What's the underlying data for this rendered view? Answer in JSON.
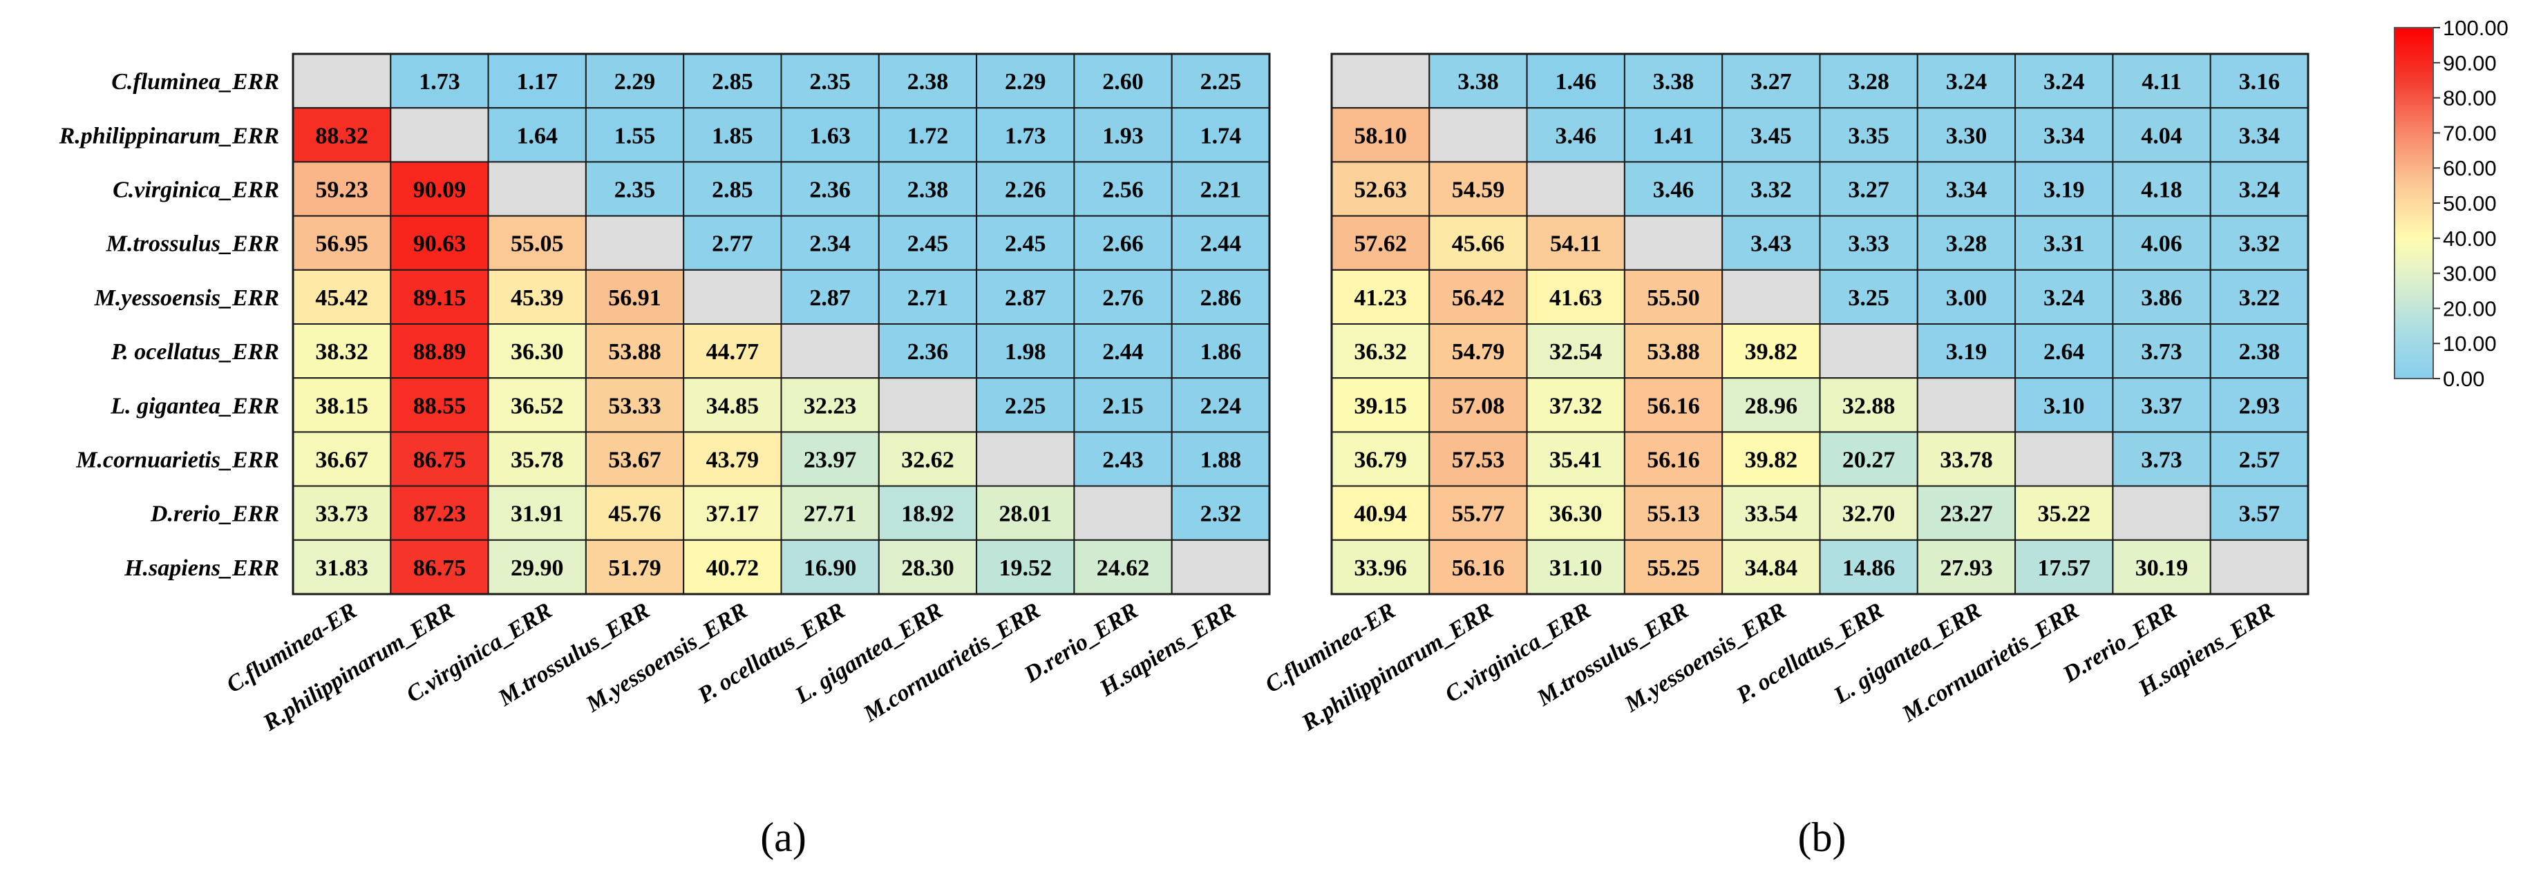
{
  "chart_data": {
    "type": "heatmap",
    "row_labels": [
      "C.fluminea_ERR",
      "R.philippinarum_ERR",
      "C.virginica_ERR",
      "M.trossulus_ERR",
      "M.yessoensis_ERR",
      "P. ocellatus_ERR",
      "L. gigantea_ERR",
      "M.cornuarietis_ERR",
      "D.rerio_ERR",
      "H.sapiens_ERR"
    ],
    "col_labels": [
      "C.fluminea-ER",
      "R.philippinarum_ERR",
      "C.virginica_ERR",
      "M.trossulus_ERR",
      "M.yessoensis_ERR",
      "P. ocellatus_ERR",
      "L. gigantea_ERR",
      "M.cornuarietis_ERR",
      "D.rerio_ERR",
      "H.sapiens_ERR"
    ],
    "colorbar": {
      "range": [
        0,
        100
      ],
      "ticks": [
        "100.00",
        "90.00",
        "80.00",
        "70.00",
        "60.00",
        "50.00",
        "40.00",
        "30.00",
        "20.00",
        "10.00",
        "0.00"
      ],
      "colors": [
        "#87ceeb",
        "#fffbb0",
        "#ff0000"
      ]
    },
    "panels": [
      {
        "label": "(a)",
        "matrix": [
          [
            null,
            "1.73",
            "1.17",
            "2.29",
            "2.85",
            "2.35",
            "2.38",
            "2.29",
            "2.60",
            "2.25"
          ],
          [
            "88.32",
            null,
            "1.64",
            "1.55",
            "1.85",
            "1.63",
            "1.72",
            "1.73",
            "1.93",
            "1.74"
          ],
          [
            "59.23",
            "90.09",
            null,
            "2.35",
            "2.85",
            "2.36",
            "2.38",
            "2.26",
            "2.56",
            "2.21"
          ],
          [
            "56.95",
            "90.63",
            "55.05",
            null,
            "2.77",
            "2.34",
            "2.45",
            "2.45",
            "2.66",
            "2.44"
          ],
          [
            "45.42",
            "89.15",
            "45.39",
            "56.91",
            null,
            "2.87",
            "2.71",
            "2.87",
            "2.76",
            "2.86"
          ],
          [
            "38.32",
            "88.89",
            "36.30",
            "53.88",
            "44.77",
            null,
            "2.36",
            "1.98",
            "2.44",
            "1.86"
          ],
          [
            "38.15",
            "88.55",
            "36.52",
            "53.33",
            "34.85",
            "32.23",
            null,
            "2.25",
            "2.15",
            "2.24"
          ],
          [
            "36.67",
            "86.75",
            "35.78",
            "53.67",
            "43.79",
            "23.97",
            "32.62",
            null,
            "2.43",
            "1.88"
          ],
          [
            "33.73",
            "87.23",
            "31.91",
            "45.76",
            "37.17",
            "27.71",
            "18.92",
            "28.01",
            null,
            "2.32"
          ],
          [
            "31.83",
            "86.75",
            "29.90",
            "51.79",
            "40.72",
            "16.90",
            "28.30",
            "19.52",
            "24.62",
            null
          ]
        ]
      },
      {
        "label": "(b)",
        "matrix": [
          [
            null,
            "3.38",
            "1.46",
            "3.38",
            "3.27",
            "3.28",
            "3.24",
            "3.24",
            "4.11",
            "3.16"
          ],
          [
            "58.10",
            null,
            "3.46",
            "1.41",
            "3.45",
            "3.35",
            "3.30",
            "3.34",
            "4.04",
            "3.34"
          ],
          [
            "52.63",
            "54.59",
            null,
            "3.46",
            "3.32",
            "3.27",
            "3.34",
            "3.19",
            "4.18",
            "3.24"
          ],
          [
            "57.62",
            "45.66",
            "54.11",
            null,
            "3.43",
            "3.33",
            "3.28",
            "3.31",
            "4.06",
            "3.32"
          ],
          [
            "41.23",
            "56.42",
            "41.63",
            "55.50",
            null,
            "3.25",
            "3.00",
            "3.24",
            "3.86",
            "3.22"
          ],
          [
            "36.32",
            "54.79",
            "32.54",
            "53.88",
            "39.82",
            null,
            "3.19",
            "2.64",
            "3.73",
            "2.38"
          ],
          [
            "39.15",
            "57.08",
            "37.32",
            "56.16",
            "28.96",
            "32.88",
            null,
            "3.10",
            "3.37",
            "2.93"
          ],
          [
            "36.79",
            "57.53",
            "35.41",
            "56.16",
            "39.82",
            "20.27",
            "33.78",
            null,
            "3.73",
            "2.57"
          ],
          [
            "40.94",
            "55.77",
            "36.30",
            "55.13",
            "33.54",
            "32.70",
            "23.27",
            "35.22",
            null,
            "3.57"
          ],
          [
            "33.96",
            "56.16",
            "31.10",
            "55.25",
            "34.84",
            "14.86",
            "27.93",
            "17.57",
            "30.19",
            null
          ]
        ]
      }
    ]
  }
}
